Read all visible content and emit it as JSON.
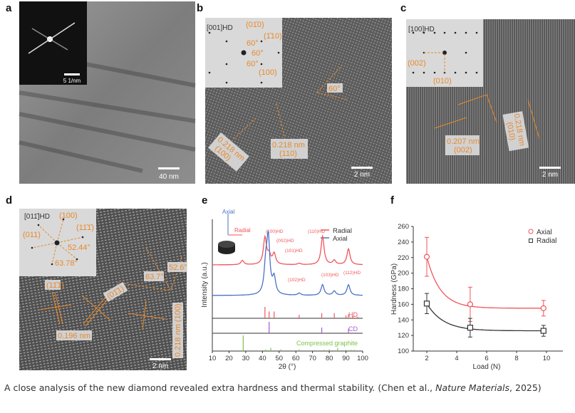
{
  "panels": {
    "a": {
      "letter": "a",
      "scale_bar": "40 nm",
      "inset_scale": "5 1/nm"
    },
    "b": {
      "letter": "b",
      "zone": "[001]HD",
      "inset_labels": [
        "(01̄0)",
        "(1̄10)",
        "60°",
        "60°",
        "60°",
        "(100)"
      ],
      "angle": "60°",
      "d1": "0.218 nm",
      "p1": "(100)",
      "d2": "0.218 nm",
      "p2": "(110)",
      "scale_bar": "2 nm"
    },
    "c": {
      "letter": "c",
      "zone": "[100]HD",
      "inset_labels": [
        "(002)",
        "(010)"
      ],
      "d1": "0.207 nm",
      "p1": "(002)",
      "d2": "0.218 nm",
      "p2": "(010)",
      "scale_bar": "2 nm"
    },
    "d": {
      "letter": "d",
      "zone": "[011̄]HD",
      "inset_labels": [
        "(100)",
        "(011)",
        "(11̄1̄)",
        "52.44°",
        "63.78°"
      ],
      "labels": [
        "(11̄1)",
        "(01̄1)",
        "52.6°",
        "63.7°",
        "0.196 nm",
        "0.218 nm (100)"
      ],
      "scale_bar": "2 nm"
    },
    "e": {
      "letter": "e"
    },
    "f": {
      "letter": "f"
    }
  },
  "chart_data": [
    {
      "type": "line",
      "title": "",
      "xlabel": "2θ (°)",
      "ylabel": "Intensity (a.u.)",
      "xlim": [
        10,
        100
      ],
      "xticks": [
        10,
        20,
        30,
        40,
        50,
        60,
        70,
        80,
        90,
        100
      ],
      "legend": [
        "Radial",
        "Axial"
      ],
      "legend_position": "top-right",
      "inset_labels": {
        "axial": "Axial",
        "radial": "Radial"
      },
      "series": [
        {
          "name": "Radial",
          "color": "#f0555a",
          "peaks": [
            [
              28,
              0.12
            ],
            [
              41.5,
              0.75
            ],
            [
              44,
              0.25
            ],
            [
              47,
              0.3
            ],
            [
              62,
              0.04
            ],
            [
              76,
              0.8
            ],
            [
              83,
              0.12
            ],
            [
              91.5,
              0.45
            ]
          ]
        },
        {
          "name": "Axial",
          "color": "#4a72c4",
          "peaks": [
            [
              42,
              0.5
            ],
            [
              43.5,
              1.0
            ],
            [
              47,
              0.3
            ],
            [
              62,
              0.04
            ],
            [
              76,
              0.2
            ],
            [
              83,
              0.08
            ],
            [
              91.5,
              0.2
            ]
          ]
        }
      ],
      "peak_labels": [
        "(100)HD",
        "(002)HD",
        "(101)HD",
        "(102)HD",
        "(110)HD",
        "(103)HD",
        "(112)HD"
      ],
      "references": [
        {
          "name": "HD",
          "color": "#f0555a",
          "lines": [
            [
              41.5,
              1
            ],
            [
              44,
              0.6
            ],
            [
              47,
              0.6
            ],
            [
              62,
              0.3
            ],
            [
              75.5,
              0.45
            ],
            [
              83,
              0.45
            ],
            [
              90,
              0.25
            ],
            [
              91.5,
              0.35
            ],
            [
              94,
              0.2
            ],
            [
              97,
              0.15
            ]
          ]
        },
        {
          "name": "CD",
          "color": "#a45ad8",
          "lines": [
            [
              44,
              1
            ],
            [
              75.5,
              0.5
            ],
            [
              91.5,
              0.4
            ]
          ]
        },
        {
          "name": "Compressed graphite",
          "color": "#7ec24a",
          "lines": [
            [
              28.5,
              1
            ],
            [
              42,
              0.1
            ],
            [
              45,
              0.2
            ],
            [
              51,
              0.1
            ],
            [
              62,
              0.1
            ],
            [
              77,
              0.08
            ],
            [
              80,
              0.1
            ],
            [
              85,
              0.2
            ],
            [
              90,
              0.08
            ],
            [
              93,
              0.08
            ],
            [
              95,
              0.08
            ]
          ]
        }
      ]
    },
    {
      "type": "scatter",
      "xlabel": "Load (N)",
      "ylabel": "Hardness (GPa)",
      "xlim": [
        1,
        11
      ],
      "ylim": [
        100,
        260
      ],
      "xticks": [
        2,
        4,
        6,
        8,
        10
      ],
      "yticks": [
        100,
        120,
        140,
        160,
        180,
        200,
        220,
        240,
        260
      ],
      "legend_position": "top-right",
      "series": [
        {
          "name": "Axial",
          "color": "#f0555a",
          "x": [
            2,
            4.9,
            9.8
          ],
          "y": [
            221,
            160,
            155
          ],
          "err": [
            25,
            22,
            10
          ],
          "fit": {
            "plateau": 155,
            "amp": 66,
            "tau": 0.9
          }
        },
        {
          "name": "Radial",
          "color": "#333333",
          "x": [
            2,
            4.9,
            9.8
          ],
          "y": [
            161,
            130,
            126
          ],
          "err": [
            13,
            12,
            7
          ],
          "fit": {
            "plateau": 126,
            "amp": 35,
            "tau": 1.1
          }
        }
      ]
    }
  ],
  "caption": {
    "text": "A close analysis of the new diamond revealed extra hardness and thermal stability. (Chen et al., ",
    "journal": "Nature Materials",
    "text2": ", 2025)"
  }
}
